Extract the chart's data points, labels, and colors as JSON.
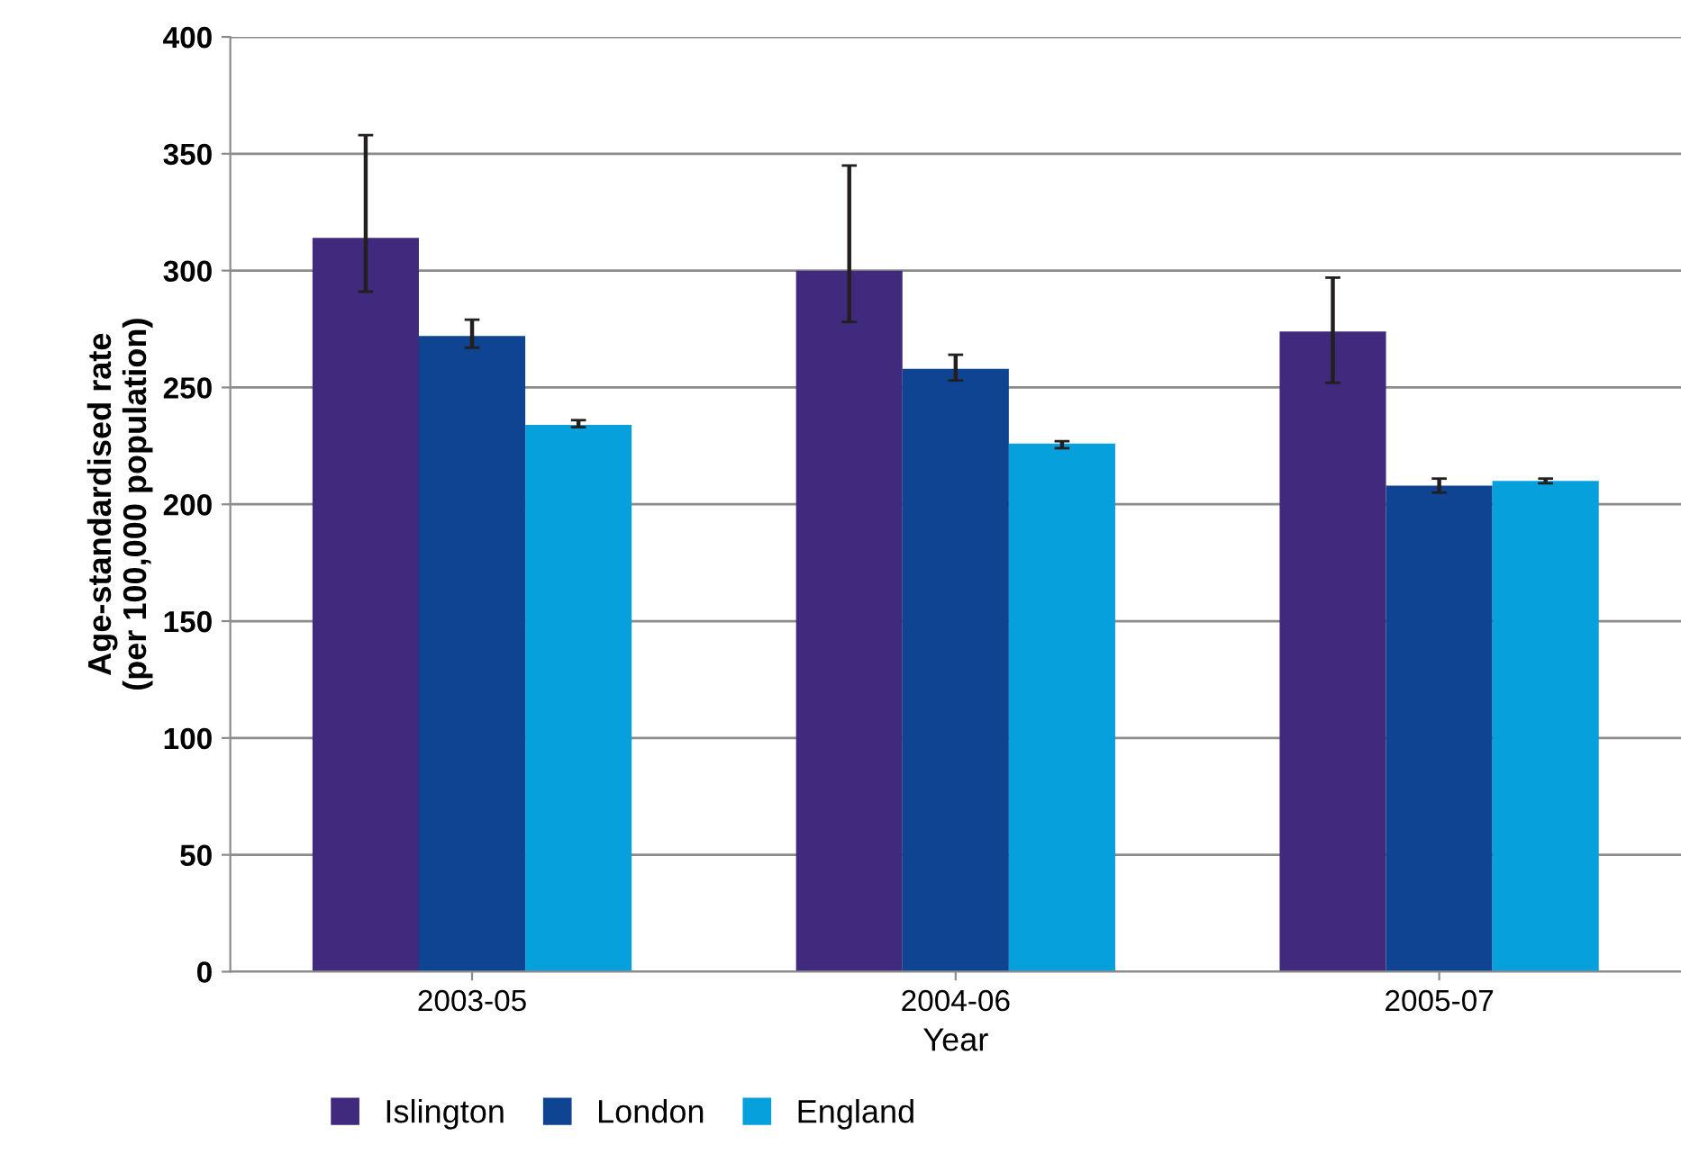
{
  "chart_data": {
    "type": "bar",
    "xlabel": "Year",
    "ylabel": "Age-standardised rate\n(per 100,000 population)",
    "categories": [
      "2003-05",
      "2004-06",
      "2005-07"
    ],
    "series": [
      {
        "name": "Islington",
        "color": "#3f2a7d",
        "values": [
          314,
          300,
          274
        ],
        "errors": [
          [
            291,
            358
          ],
          [
            278,
            345
          ],
          [
            252,
            297
          ]
        ]
      },
      {
        "name": "London",
        "color": "#0e4491",
        "values": [
          272,
          258,
          208
        ],
        "errors": [
          [
            267,
            279
          ],
          [
            253,
            264
          ],
          [
            205,
            211
          ]
        ]
      },
      {
        "name": "England",
        "color": "#06a0dc",
        "values": [
          234,
          226,
          210
        ],
        "errors": [
          [
            233,
            236
          ],
          [
            224,
            227
          ],
          [
            209,
            211
          ]
        ]
      }
    ],
    "ylim": [
      0,
      400
    ],
    "yticks": [
      0,
      50,
      100,
      150,
      200,
      250,
      300,
      350,
      400
    ],
    "grid": "y",
    "legend": "bottom"
  }
}
